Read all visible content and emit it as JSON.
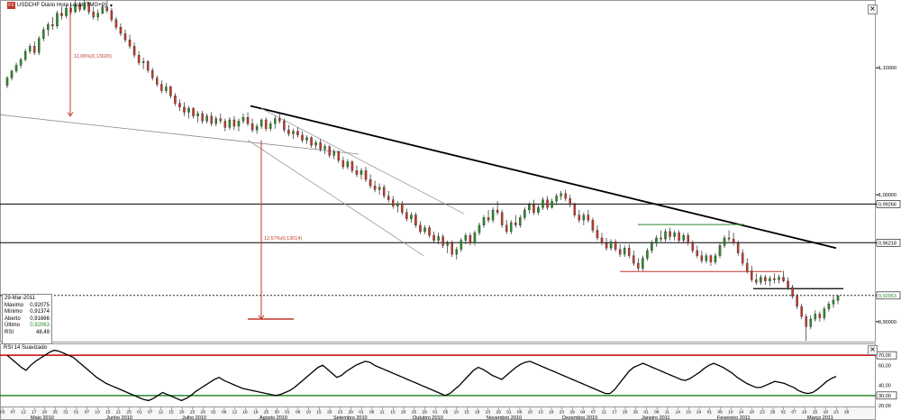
{
  "title": "USDCHF Diário Hora Local (TMG+0)",
  "title_badge": "FX",
  "close_label": "×",
  "rsi_title": "RSI 14 Suavizado",
  "infobox": {
    "date": "29-Mar-2011",
    "rows": [
      {
        "label": "Máximo",
        "value": "0,92075"
      },
      {
        "label": "Mínimo",
        "value": "0,91374"
      },
      {
        "label": "Aberto",
        "value": "0,91666"
      },
      {
        "label": "Último",
        "value": "0,92063"
      },
      {
        "label": "RSI",
        "value": "48,49"
      }
    ]
  },
  "colors": {
    "up": "#2a8a2a",
    "down": "#c0392b",
    "trend": "#000000",
    "level": "#000000",
    "rsi_line": "#000000",
    "rsi_70": "#cc0000",
    "rsi_30": "#2a8a2a"
  },
  "chart_data": {
    "type": "candlestick",
    "price_axis": {
      "labels": [
        "1,10000",
        "1,00000",
        "0,99266",
        "0,96218",
        "0,92063",
        "0,90000"
      ],
      "highlighted": [
        "0,99266",
        "0,96218",
        "0,92063"
      ]
    },
    "months": [
      "Maio 2010",
      "Junho 2010",
      "Julho 2010",
      "Agosto 2010",
      "Setembro 2010",
      "Outubro 2010",
      "Novembro 2010",
      "Dezembro 2010",
      "Janeiro 2011",
      "Fevereiro 2011",
      "Março 2011"
    ],
    "day_ticks": [
      "03",
      "07",
      "12",
      "17",
      "20",
      "25",
      "31",
      "01",
      "07",
      "10",
      "15",
      "21",
      "25",
      "01",
      "07",
      "12",
      "15",
      "20",
      "23",
      "28",
      "02",
      "09",
      "12",
      "16",
      "19",
      "25",
      "30",
      "01",
      "06",
      "10",
      "15",
      "20",
      "23",
      "29",
      "01",
      "06",
      "11",
      "15",
      "20",
      "25",
      "29",
      "01",
      "05",
      "10",
      "15",
      "18",
      "23",
      "29",
      "01",
      "06",
      "10",
      "13",
      "18",
      "23",
      "29",
      "04",
      "07",
      "12",
      "17",
      "20",
      "26",
      "01",
      "06",
      "11",
      "14",
      "19",
      "24",
      "01",
      "06",
      "10",
      "14",
      "18",
      "23",
      "28",
      "02",
      "07",
      "10",
      "15",
      "18",
      "23",
      "28"
    ],
    "annotations": [
      {
        "text": "11,09%(0,13020)"
      },
      {
        "text": "12,57%(0,13014)"
      }
    ],
    "rsi": {
      "labels": [
        "70,00",
        "60,00",
        "40,00",
        "30,00",
        "20,00"
      ],
      "levels": [
        70,
        30
      ]
    },
    "candles": [
      [
        1.086,
        1.0935,
        1.084,
        1.092
      ],
      [
        1.092,
        1.0985,
        1.09,
        1.0975
      ],
      [
        1.0975,
        1.104,
        1.096,
        1.102
      ],
      [
        1.102,
        1.108,
        1.0995,
        1.1065
      ],
      [
        1.1065,
        1.115,
        1.105,
        1.113
      ],
      [
        1.113,
        1.119,
        1.111,
        1.117
      ],
      [
        1.117,
        1.121,
        1.11,
        1.112
      ],
      [
        1.112,
        1.125,
        1.11,
        1.123
      ],
      [
        1.123,
        1.132,
        1.121,
        1.13
      ],
      [
        1.13,
        1.136,
        1.125,
        1.134
      ],
      [
        1.134,
        1.14,
        1.13,
        1.133
      ],
      [
        1.133,
        1.145,
        1.131,
        1.143
      ],
      [
        1.143,
        1.148,
        1.138,
        1.141
      ],
      [
        1.141,
        1.15,
        1.139,
        1.147
      ],
      [
        1.147,
        1.151,
        1.142,
        1.144
      ],
      [
        1.144,
        1.153,
        1.143,
        1.15
      ],
      [
        1.15,
        1.152,
        1.144,
        1.146
      ],
      [
        1.146,
        1.154,
        1.145,
        1.151
      ],
      [
        1.151,
        1.152,
        1.142,
        1.144
      ],
      [
        1.144,
        1.148,
        1.138,
        1.14
      ],
      [
        1.14,
        1.146,
        1.137,
        1.143
      ],
      [
        1.143,
        1.15,
        1.142,
        1.148
      ],
      [
        1.148,
        1.153,
        1.143,
        1.145
      ],
      [
        1.145,
        1.147,
        1.136,
        1.138
      ],
      [
        1.138,
        1.14,
        1.13,
        1.132
      ],
      [
        1.132,
        1.135,
        1.125,
        1.127
      ],
      [
        1.127,
        1.13,
        1.12,
        1.122
      ],
      [
        1.122,
        1.126,
        1.115,
        1.117
      ],
      [
        1.117,
        1.12,
        1.108,
        1.11
      ],
      [
        1.11,
        1.113,
        1.102,
        1.104
      ],
      [
        1.104,
        1.108,
        1.099,
        1.105
      ],
      [
        1.105,
        1.106,
        1.096,
        1.098
      ],
      [
        1.098,
        1.1,
        1.09,
        1.092
      ],
      [
        1.092,
        1.094,
        1.085,
        1.087
      ],
      [
        1.087,
        1.09,
        1.08,
        1.082
      ],
      [
        1.082,
        1.088,
        1.08,
        1.085
      ],
      [
        1.085,
        1.086,
        1.076,
        1.078
      ],
      [
        1.078,
        1.08,
        1.07,
        1.072
      ],
      [
        1.072,
        1.075,
        1.066,
        1.069
      ],
      [
        1.069,
        1.073,
        1.062,
        1.065
      ],
      [
        1.065,
        1.07,
        1.06,
        1.068
      ],
      [
        1.068,
        1.069,
        1.06,
        1.062
      ],
      [
        1.062,
        1.066,
        1.057,
        1.064
      ],
      [
        1.064,
        1.066,
        1.056,
        1.058
      ],
      [
        1.058,
        1.064,
        1.056,
        1.062
      ],
      [
        1.062,
        1.065,
        1.054,
        1.056
      ],
      [
        1.056,
        1.062,
        1.054,
        1.06
      ],
      [
        1.06,
        1.064,
        1.056,
        1.058
      ],
      [
        1.058,
        1.06,
        1.05,
        1.053
      ],
      [
        1.053,
        1.061,
        1.051,
        1.059
      ],
      [
        1.059,
        1.062,
        1.051,
        1.054
      ],
      [
        1.054,
        1.06,
        1.05,
        1.058
      ],
      [
        1.058,
        1.064,
        1.056,
        1.061
      ],
      [
        1.061,
        1.065,
        1.054,
        1.056
      ],
      [
        1.056,
        1.06,
        1.049,
        1.051
      ],
      [
        1.051,
        1.056,
        1.048,
        1.054
      ],
      [
        1.054,
        1.06,
        1.052,
        1.059
      ],
      [
        1.059,
        1.061,
        1.05,
        1.052
      ],
      [
        1.052,
        1.058,
        1.05,
        1.056
      ],
      [
        1.056,
        1.062,
        1.052,
        1.06
      ],
      [
        1.06,
        1.064,
        1.056,
        1.058
      ],
      [
        1.058,
        1.06,
        1.049,
        1.051
      ],
      [
        1.051,
        1.055,
        1.046,
        1.048
      ],
      [
        1.048,
        1.052,
        1.044,
        1.05
      ],
      [
        1.05,
        1.053,
        1.045,
        1.047
      ],
      [
        1.047,
        1.05,
        1.041,
        1.043
      ],
      [
        1.043,
        1.047,
        1.04,
        1.045
      ],
      [
        1.045,
        1.046,
        1.037,
        1.039
      ],
      [
        1.039,
        1.043,
        1.036,
        1.041
      ],
      [
        1.041,
        1.044,
        1.034,
        1.036
      ],
      [
        1.036,
        1.04,
        1.032,
        1.038
      ],
      [
        1.038,
        1.039,
        1.029,
        1.031
      ],
      [
        1.031,
        1.036,
        1.028,
        1.034
      ],
      [
        1.034,
        1.035,
        1.025,
        1.027
      ],
      [
        1.027,
        1.03,
        1.02,
        1.022
      ],
      [
        1.022,
        1.028,
        1.02,
        1.026
      ],
      [
        1.026,
        1.027,
        1.017,
        1.019
      ],
      [
        1.019,
        1.023,
        1.014,
        1.016
      ],
      [
        1.016,
        1.021,
        1.012,
        1.019
      ],
      [
        1.019,
        1.022,
        1.01,
        1.012
      ],
      [
        1.012,
        1.016,
        1.005,
        1.007
      ],
      [
        1.007,
        1.011,
        1.002,
        1.004
      ],
      [
        1.004,
        1.009,
        1.0,
        1.006
      ],
      [
        1.006,
        1.008,
        0.997,
        0.999
      ],
      [
        0.999,
        1.003,
        0.994,
        0.996
      ],
      [
        0.996,
        0.999,
        0.989,
        0.991
      ],
      [
        0.991,
        0.995,
        0.986,
        0.993
      ],
      [
        0.993,
        0.995,
        0.984,
        0.986
      ],
      [
        0.986,
        0.989,
        0.979,
        0.981
      ],
      [
        0.981,
        0.986,
        0.978,
        0.984
      ],
      [
        0.984,
        0.986,
        0.974,
        0.976
      ],
      [
        0.976,
        0.979,
        0.969,
        0.971
      ],
      [
        0.971,
        0.976,
        0.969,
        0.974
      ],
      [
        0.974,
        0.976,
        0.966,
        0.968
      ],
      [
        0.968,
        0.971,
        0.962,
        0.964
      ],
      [
        0.964,
        0.97,
        0.961,
        0.967
      ],
      [
        0.967,
        0.969,
        0.958,
        0.96
      ],
      [
        0.96,
        0.964,
        0.954,
        0.962
      ],
      [
        0.962,
        0.964,
        0.951,
        0.953
      ],
      [
        0.953,
        0.959,
        0.949,
        0.957
      ],
      [
        0.957,
        0.966,
        0.955,
        0.964
      ],
      [
        0.964,
        0.97,
        0.961,
        0.968
      ],
      [
        0.968,
        0.97,
        0.96,
        0.962
      ],
      [
        0.962,
        0.972,
        0.96,
        0.97
      ],
      [
        0.97,
        0.978,
        0.968,
        0.976
      ],
      [
        0.976,
        0.984,
        0.974,
        0.982
      ],
      [
        0.982,
        0.988,
        0.978,
        0.98
      ],
      [
        0.98,
        0.99,
        0.978,
        0.988
      ],
      [
        0.988,
        0.995,
        0.984,
        0.986
      ],
      [
        0.986,
        0.988,
        0.974,
        0.976
      ],
      [
        0.976,
        0.98,
        0.969,
        0.971
      ],
      [
        0.971,
        0.98,
        0.969,
        0.978
      ],
      [
        0.978,
        0.984,
        0.974,
        0.976
      ],
      [
        0.976,
        0.984,
        0.974,
        0.982
      ],
      [
        0.982,
        0.99,
        0.98,
        0.988
      ],
      [
        0.988,
        0.994,
        0.985,
        0.992
      ],
      [
        0.992,
        0.996,
        0.984,
        0.986
      ],
      [
        0.986,
        0.992,
        0.984,
        0.99
      ],
      [
        0.99,
        0.998,
        0.988,
        0.996
      ],
      [
        0.996,
        0.999,
        0.988,
        0.99
      ],
      [
        0.99,
        0.997,
        0.989,
        0.995
      ],
      [
        0.995,
        1.001,
        0.992,
        0.999
      ],
      [
        0.999,
        1.003,
        0.996,
        1.001
      ],
      [
        1.001,
        1.004,
        0.995,
        0.997
      ],
      [
        0.997,
        1.0,
        0.99,
        0.992
      ],
      [
        0.992,
        0.994,
        0.982,
        0.984
      ],
      [
        0.984,
        0.988,
        0.978,
        0.98
      ],
      [
        0.98,
        0.986,
        0.976,
        0.984
      ],
      [
        0.984,
        0.988,
        0.978,
        0.98
      ],
      [
        0.98,
        0.982,
        0.97,
        0.972
      ],
      [
        0.972,
        0.976,
        0.964,
        0.966
      ],
      [
        0.966,
        0.97,
        0.96,
        0.962
      ],
      [
        0.962,
        0.966,
        0.956,
        0.958
      ],
      [
        0.958,
        0.965,
        0.956,
        0.963
      ],
      [
        0.963,
        0.965,
        0.955,
        0.957
      ],
      [
        0.957,
        0.961,
        0.951,
        0.953
      ],
      [
        0.953,
        0.96,
        0.951,
        0.958
      ],
      [
        0.958,
        0.961,
        0.95,
        0.952
      ],
      [
        0.952,
        0.956,
        0.944,
        0.946
      ],
      [
        0.946,
        0.95,
        0.94,
        0.942
      ],
      [
        0.942,
        0.952,
        0.94,
        0.95
      ],
      [
        0.95,
        0.958,
        0.948,
        0.956
      ],
      [
        0.956,
        0.964,
        0.954,
        0.962
      ],
      [
        0.962,
        0.968,
        0.959,
        0.966
      ],
      [
        0.966,
        0.972,
        0.963,
        0.965
      ],
      [
        0.965,
        0.973,
        0.963,
        0.971
      ],
      [
        0.971,
        0.974,
        0.964,
        0.967
      ],
      [
        0.967,
        0.972,
        0.964,
        0.97
      ],
      [
        0.97,
        0.972,
        0.962,
        0.964
      ],
      [
        0.964,
        0.97,
        0.962,
        0.968
      ],
      [
        0.968,
        0.97,
        0.96,
        0.962
      ],
      [
        0.962,
        0.964,
        0.954,
        0.956
      ],
      [
        0.956,
        0.96,
        0.95,
        0.952
      ],
      [
        0.952,
        0.956,
        0.946,
        0.948
      ],
      [
        0.948,
        0.954,
        0.946,
        0.952
      ],
      [
        0.952,
        0.953,
        0.944,
        0.947
      ],
      [
        0.947,
        0.954,
        0.945,
        0.952
      ],
      [
        0.952,
        0.962,
        0.95,
        0.96
      ],
      [
        0.96,
        0.968,
        0.958,
        0.966
      ],
      [
        0.966,
        0.972,
        0.963,
        0.965
      ],
      [
        0.965,
        0.97,
        0.96,
        0.962
      ],
      [
        0.962,
        0.964,
        0.952,
        0.954
      ],
      [
        0.954,
        0.957,
        0.944,
        0.946
      ],
      [
        0.946,
        0.95,
        0.938,
        0.94
      ],
      [
        0.94,
        0.944,
        0.931,
        0.933
      ],
      [
        0.933,
        0.938,
        0.929,
        0.931
      ],
      [
        0.931,
        0.937,
        0.929,
        0.935
      ],
      [
        0.935,
        0.937,
        0.929,
        0.932
      ],
      [
        0.932,
        0.936,
        0.928,
        0.934
      ],
      [
        0.934,
        0.938,
        0.93,
        0.933
      ],
      [
        0.933,
        0.937,
        0.93,
        0.935
      ],
      [
        0.935,
        0.94,
        0.931,
        0.932
      ],
      [
        0.932,
        0.935,
        0.925,
        0.927
      ],
      [
        0.927,
        0.929,
        0.918,
        0.92
      ],
      [
        0.92,
        0.922,
        0.91,
        0.912
      ],
      [
        0.912,
        0.914,
        0.902,
        0.904
      ],
      [
        0.904,
        0.906,
        0.885,
        0.896
      ],
      [
        0.896,
        0.905,
        0.894,
        0.902
      ],
      [
        0.902,
        0.909,
        0.9,
        0.906
      ],
      [
        0.906,
        0.908,
        0.9,
        0.903
      ],
      [
        0.903,
        0.912,
        0.901,
        0.91
      ],
      [
        0.91,
        0.916,
        0.908,
        0.914
      ],
      [
        0.914,
        0.92,
        0.911,
        0.917
      ],
      [
        0.9167,
        0.9208,
        0.9137,
        0.9206
      ]
    ]
  }
}
